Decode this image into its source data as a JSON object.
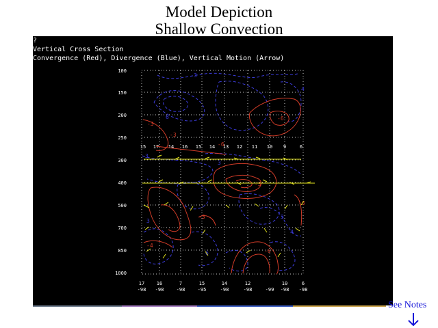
{
  "page": {
    "title_line1": "Model Depiction",
    "title_line2": "Shallow Convection"
  },
  "plot": {
    "header_lines": [
      "?",
      "Vertical Cross Section",
      "Convergence (Red), Divergence (Blue), Vertical Motion (Arrow)"
    ],
    "colors": {
      "background": "#000000",
      "convergence": "#d23c28",
      "divergence": "#3c3cdc",
      "vertical_motion": "#e6e61e",
      "grid": "#c8c8c8"
    },
    "pressure_levels": [
      "100",
      "150",
      "200",
      "250",
      "300",
      "400",
      "500",
      "700",
      "850",
      "1000"
    ],
    "bottom_axis": [
      {
        "top": "17",
        "bottom": "-98"
      },
      {
        "top": "16",
        "bottom": "-98"
      },
      {
        "top": "7",
        "bottom": "-98"
      },
      {
        "top": "15",
        "bottom": "-95"
      },
      {
        "top": "14",
        "bottom": "-98"
      },
      {
        "top": "12",
        "bottom": "-98"
      },
      {
        "top": "",
        "bottom": "-99"
      },
      {
        "top": "10",
        "bottom": "-98"
      },
      {
        "top": "6",
        "bottom": "-98"
      }
    ],
    "top_axis_labels": [
      "15",
      "17",
      "14",
      "16",
      "15",
      "14",
      "13",
      "12",
      "11",
      "10",
      "9",
      "6"
    ],
    "contour_labels": [
      {
        "text": "-3",
        "kind": "convergence"
      },
      {
        "text": "-6",
        "kind": "convergence"
      },
      {
        "text": "-3",
        "kind": "convergence"
      },
      {
        "text": "-3",
        "kind": "convergence"
      },
      {
        "text": "-6",
        "kind": "convergence"
      },
      {
        "text": "-4",
        "kind": "convergence"
      },
      {
        "text": "-3",
        "kind": "convergence"
      },
      {
        "text": "-6",
        "kind": "convergence"
      },
      {
        "text": "-3",
        "kind": "convergence"
      },
      {
        "text": "3",
        "kind": "divergence"
      },
      {
        "text": "4",
        "kind": "divergence"
      },
      {
        "text": "6",
        "kind": "divergence"
      },
      {
        "text": "3",
        "kind": "divergence"
      },
      {
        "text": "3",
        "kind": "divergence"
      },
      {
        "text": "3",
        "kind": "divergence"
      },
      {
        "text": "4",
        "kind": "divergence"
      },
      {
        "text": "3",
        "kind": "divergence"
      },
      {
        "text": "6",
        "kind": "divergence"
      }
    ]
  },
  "notes": {
    "label": "See Notes",
    "arrow_icon": "down-arrow-icon",
    "color": "#1414d8"
  }
}
